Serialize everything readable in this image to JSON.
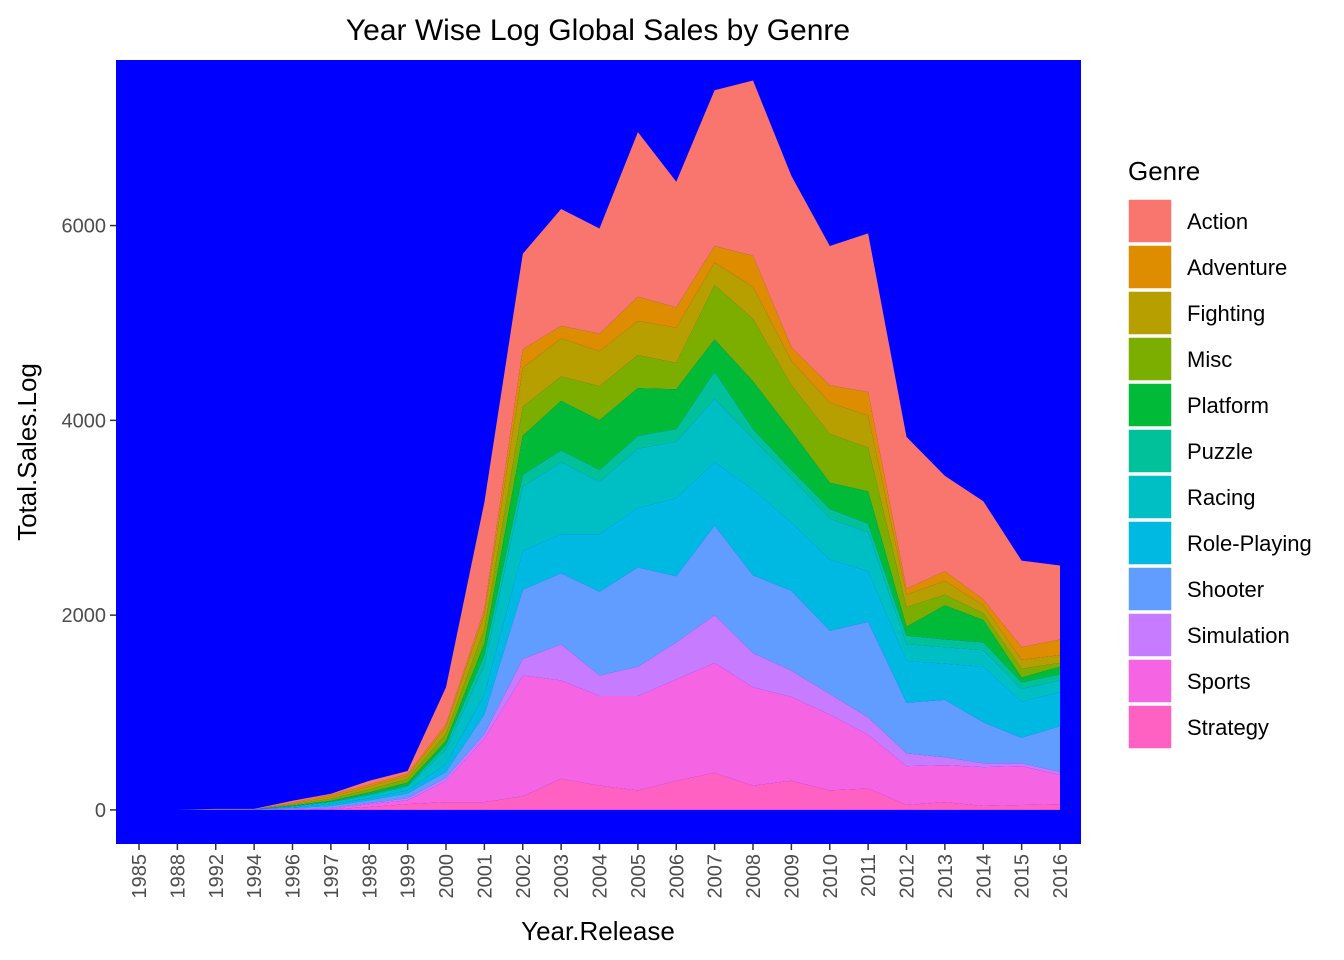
{
  "chart_data": {
    "type": "area",
    "stacked": true,
    "title": "Year Wise Log Global Sales by Genre",
    "xlabel": "Year.Release",
    "ylabel": "Total.Sales.Log",
    "ylim": [
      -350,
      7700
    ],
    "y_ticks": [
      0,
      2000,
      4000,
      6000
    ],
    "grid": false,
    "panel_background": "#0000ff",
    "legend": {
      "title": "Genre",
      "position": "right"
    },
    "categories": [
      "1985",
      "1988",
      "1992",
      "1994",
      "1996",
      "1997",
      "1998",
      "1999",
      "2000",
      "2001",
      "2002",
      "2003",
      "2004",
      "2005",
      "2006",
      "2007",
      "2008",
      "2009",
      "2010",
      "2011",
      "2012",
      "2013",
      "2014",
      "2015",
      "2016"
    ],
    "series": [
      {
        "name": "Strategy",
        "color": "#ff61c3",
        "values": [
          0,
          0,
          0,
          0,
          0,
          5,
          30,
          60,
          80,
          80,
          140,
          320,
          250,
          200,
          300,
          380,
          250,
          300,
          200,
          220,
          50,
          80,
          40,
          50,
          60
        ]
      },
      {
        "name": "Sports",
        "color": "#f564e3",
        "values": [
          0,
          0,
          0,
          0,
          0,
          5,
          30,
          40,
          220,
          650,
          1240,
          1010,
          920,
          970,
          1040,
          1130,
          1010,
          860,
          780,
          550,
          400,
          380,
          400,
          400,
          300
        ]
      },
      {
        "name": "Simulation",
        "color": "#c77cff",
        "values": [
          0,
          0,
          0,
          0,
          10,
          10,
          10,
          20,
          30,
          50,
          170,
          370,
          210,
          300,
          380,
          490,
          350,
          270,
          210,
          180,
          130,
          80,
          40,
          30,
          30
        ]
      },
      {
        "name": "Shooter",
        "color": "#619cff",
        "values": [
          0,
          0,
          5,
          5,
          10,
          20,
          30,
          50,
          60,
          200,
          710,
          730,
          860,
          1020,
          680,
          920,
          800,
          820,
          650,
          980,
          520,
          590,
          420,
          260,
          470
        ]
      },
      {
        "name": "Role-Playing",
        "color": "#00b9e3",
        "values": [
          0,
          0,
          0,
          0,
          5,
          20,
          20,
          30,
          80,
          200,
          400,
          400,
          590,
          610,
          800,
          650,
          880,
          700,
          730,
          520,
          430,
          370,
          570,
          370,
          350
        ]
      },
      {
        "name": "Racing",
        "color": "#00bfc4",
        "values": [
          0,
          0,
          0,
          0,
          10,
          20,
          30,
          40,
          150,
          310,
          660,
          740,
          540,
          610,
          580,
          650,
          520,
          460,
          420,
          400,
          170,
          170,
          170,
          130,
          120
        ]
      },
      {
        "name": "Puzzle",
        "color": "#00c19a",
        "values": [
          0,
          0,
          0,
          0,
          5,
          5,
          10,
          10,
          50,
          100,
          120,
          120,
          120,
          130,
          130,
          280,
          100,
          80,
          100,
          90,
          90,
          80,
          80,
          70,
          60
        ]
      },
      {
        "name": "Platform",
        "color": "#00ba38",
        "values": [
          0,
          0,
          0,
          0,
          5,
          10,
          20,
          30,
          40,
          120,
          400,
          510,
          510,
          490,
          410,
          330,
          490,
          400,
          270,
          330,
          90,
          350,
          230,
          50,
          80
        ]
      },
      {
        "name": "Misc",
        "color": "#7cae00",
        "values": [
          0,
          0,
          0,
          0,
          10,
          20,
          30,
          40,
          70,
          150,
          300,
          250,
          350,
          340,
          270,
          560,
          640,
          470,
          500,
          450,
          200,
          110,
          70,
          90,
          40
        ]
      },
      {
        "name": "Fighting",
        "color": "#b79f00",
        "values": [
          0,
          0,
          0,
          0,
          10,
          20,
          30,
          30,
          70,
          150,
          400,
          390,
          360,
          350,
          360,
          230,
          330,
          250,
          320,
          330,
          130,
          140,
          80,
          90,
          80
        ]
      },
      {
        "name": "Adventure",
        "color": "#de8c00",
        "values": [
          0,
          0,
          0,
          0,
          10,
          20,
          20,
          20,
          30,
          50,
          190,
          130,
          180,
          250,
          210,
          170,
          320,
          140,
          180,
          240,
          60,
          100,
          60,
          130,
          160
        ]
      },
      {
        "name": "Action",
        "color": "#f8766d",
        "values": [
          0,
          0,
          5,
          5,
          20,
          10,
          40,
          30,
          380,
          1100,
          980,
          1200,
          1080,
          1690,
          1290,
          1600,
          1800,
          1760,
          1430,
          1630,
          1560,
          980,
          1010,
          890,
          760
        ]
      }
    ]
  }
}
